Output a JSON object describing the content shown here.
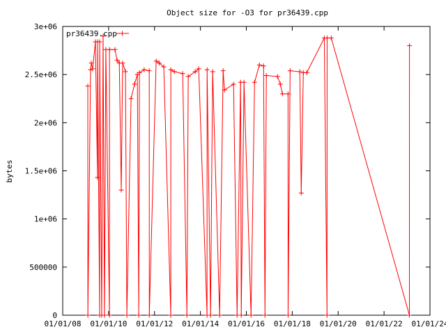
{
  "chart_data": {
    "type": "line",
    "title": "Object size for -O3 for pr36439.cpp",
    "xlabel": "",
    "ylabel": "bytes",
    "xlim": [
      "2008-01-01",
      "2024-01-01"
    ],
    "ylim": [
      0,
      3000000
    ],
    "x_ticks": [
      "01/01/08",
      "01/01/10",
      "01/01/12",
      "01/01/14",
      "01/01/16",
      "01/01/18",
      "01/01/20",
      "01/01/22",
      "01/01/24"
    ],
    "y_ticks": [
      "0",
      "500000",
      "1e+06",
      "1.5e+06",
      "2e+06",
      "2.5e+06",
      "3e+06"
    ],
    "y_tick_values": [
      0,
      500000,
      1000000,
      1500000,
      2000000,
      2500000,
      3000000
    ],
    "grid": false,
    "legend": "top-left",
    "series": [
      {
        "name": "pr36439.cpp",
        "color": "#ff0000",
        "marker": "plus",
        "points": [
          [
            "2009-02-04",
            2380000
          ],
          [
            "2009-02-05",
            0
          ],
          [
            "2009-03-20",
            2550000
          ],
          [
            "2009-04-01",
            2620000
          ],
          [
            "2009-04-22",
            2560000
          ],
          [
            "2009-06-05",
            2840000
          ],
          [
            "2009-07-08",
            1430000
          ],
          [
            "2009-07-09",
            2840000
          ],
          [
            "2009-08-11",
            0
          ],
          [
            "2009-08-12",
            2840000
          ],
          [
            "2009-09-13",
            0
          ],
          [
            "2009-10-05",
            2900000
          ],
          [
            "2009-10-27",
            0
          ],
          [
            "2009-11-18",
            2760000
          ],
          [
            "2010-01-14",
            0
          ],
          [
            "2010-01-15",
            2760000
          ],
          [
            "2010-04-12",
            2760000
          ],
          [
            "2010-05-15",
            2650000
          ],
          [
            "2010-06-20",
            2620000
          ],
          [
            "2010-07-21",
            1300000
          ],
          [
            "2010-08-12",
            2620000
          ],
          [
            "2010-09-26",
            2530000
          ],
          [
            "2010-10-18",
            0
          ],
          [
            "2010-12-24",
            2250000
          ],
          [
            "2011-02-17",
            2400000
          ],
          [
            "2011-04-03",
            2500000
          ],
          [
            "2011-04-25",
            0
          ],
          [
            "2011-05-06",
            2520000
          ],
          [
            "2011-07-20",
            2550000
          ],
          [
            "2011-10-09",
            2540000
          ],
          [
            "2011-10-10",
            0
          ],
          [
            "2012-01-27",
            2640000
          ],
          [
            "2012-03-15",
            2620000
          ],
          [
            "2012-05-28",
            2580000
          ],
          [
            "2012-09-16",
            0
          ],
          [
            "2012-09-17",
            2550000
          ],
          [
            "2012-11-11",
            2530000
          ],
          [
            "2013-03-25",
            2510000
          ],
          [
            "2013-05-31",
            0
          ],
          [
            "2013-06-21",
            2480000
          ],
          [
            "2013-10-10",
            2530000
          ],
          [
            "2013-12-05",
            2560000
          ],
          [
            "2014-04-16",
            0
          ],
          [
            "2014-04-17",
            2550000
          ],
          [
            "2014-06-11",
            0
          ],
          [
            "2014-07-14",
            2530000
          ],
          [
            "2014-11-02",
            0
          ],
          [
            "2014-12-28",
            2540000
          ],
          [
            "2015-01-19",
            2340000
          ],
          [
            "2015-06-12",
            2400000
          ],
          [
            "2015-08-07",
            0
          ],
          [
            "2015-10-01",
            2420000
          ],
          [
            "2015-10-12",
            0
          ],
          [
            "2015-11-25",
            2420000
          ],
          [
            "2016-03-16",
            0
          ],
          [
            "2016-05-11",
            2420000
          ],
          [
            "2016-07-27",
            2600000
          ],
          [
            "2016-10-02",
            2590000
          ],
          [
            "2016-10-24",
            0
          ],
          [
            "2016-11-15",
            2490000
          ],
          [
            "2017-05-12",
            2480000
          ],
          [
            "2017-06-25",
            2400000
          ],
          [
            "2017-07-29",
            2300000
          ],
          [
            "2017-10-26",
            2300000
          ],
          [
            "2017-10-27",
            0
          ],
          [
            "2017-11-28",
            2540000
          ],
          [
            "2018-05-01",
            2530000
          ],
          [
            "2018-05-24",
            1270000
          ],
          [
            "2018-06-26",
            2520000
          ],
          [
            "2018-08-20",
            2520000
          ],
          [
            "2019-05-26",
            2880000
          ],
          [
            "2019-07-08",
            0
          ],
          [
            "2019-07-09",
            2880000
          ],
          [
            "2019-09-13",
            2880000
          ],
          [
            "2023-02-08",
            0
          ],
          [
            "2023-02-09",
            2800000
          ]
        ]
      }
    ]
  }
}
